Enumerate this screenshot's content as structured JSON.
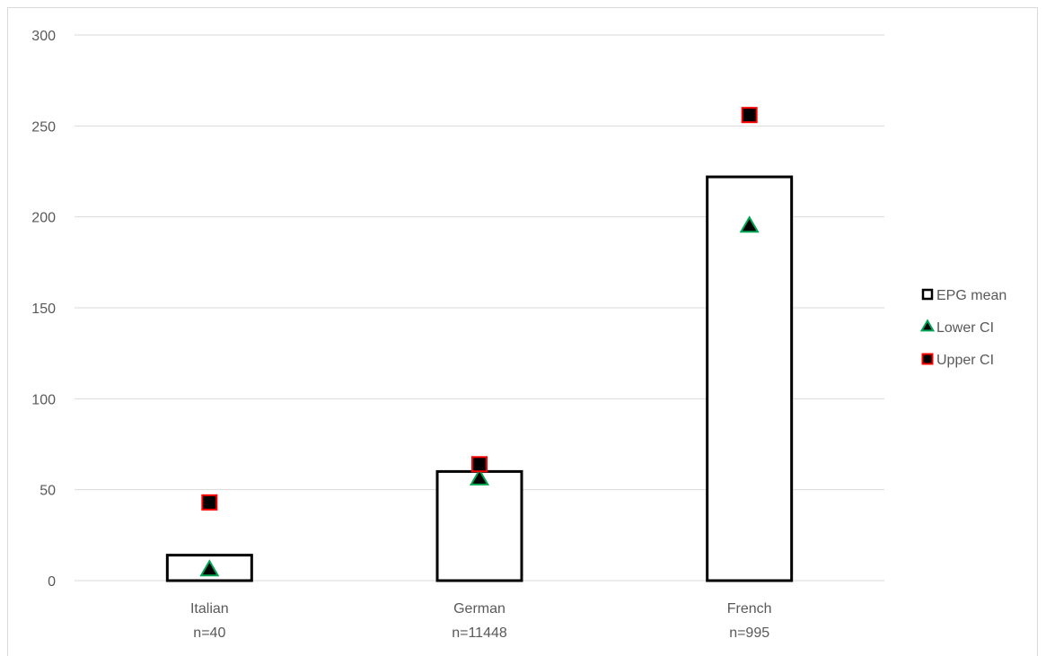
{
  "chart_data": {
    "type": "bar",
    "categories": [
      "Italian",
      "German",
      "French"
    ],
    "category_sublabels": [
      "n=40",
      "n=11448",
      "n=995"
    ],
    "series": [
      {
        "name": "EPG mean",
        "values": [
          14,
          60,
          222
        ],
        "marker": "bar",
        "fill": "#ffffff",
        "stroke": "#000000"
      },
      {
        "name": "Lower CI",
        "values": [
          6,
          56,
          195
        ],
        "marker": "triangle",
        "fill": "#000000",
        "stroke": "#00a651"
      },
      {
        "name": "Upper CI",
        "values": [
          43,
          64,
          256
        ],
        "marker": "square",
        "fill": "#000000",
        "stroke": "#ff0000"
      }
    ],
    "yticks": [
      0,
      50,
      100,
      150,
      200,
      250,
      300
    ],
    "ylim": [
      0,
      300
    ],
    "grid": true,
    "legend_position": "right"
  }
}
